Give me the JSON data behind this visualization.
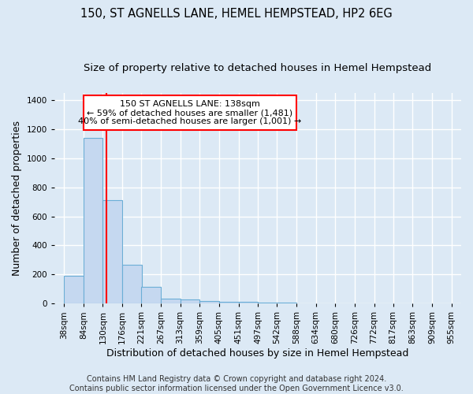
{
  "title1": "150, ST AGNELLS LANE, HEMEL HEMPSTEAD, HP2 6EG",
  "title2": "Size of property relative to detached houses in Hemel Hempstead",
  "xlabel": "Distribution of detached houses by size in Hemel Hempstead",
  "ylabel": "Number of detached properties",
  "footer1": "Contains HM Land Registry data © Crown copyright and database right 2024.",
  "footer2": "Contains public sector information licensed under the Open Government Licence v3.0.",
  "bar_left_edges": [
    38,
    84,
    130,
    176,
    221,
    267,
    313,
    359,
    405,
    451,
    497,
    542
  ],
  "bar_heights": [
    190,
    1140,
    710,
    265,
    115,
    35,
    28,
    20,
    15,
    13,
    8,
    8
  ],
  "bin_width": 46,
  "bar_color": "#c5d8f0",
  "bar_edge_color": "#6baed6",
  "x_tick_labels": [
    "38sqm",
    "84sqm",
    "130sqm",
    "176sqm",
    "221sqm",
    "267sqm",
    "313sqm",
    "359sqm",
    "405sqm",
    "451sqm",
    "497sqm",
    "542sqm",
    "588sqm",
    "634sqm",
    "680sqm",
    "726sqm",
    "772sqm",
    "817sqm",
    "863sqm",
    "909sqm",
    "955sqm"
  ],
  "x_tick_positions": [
    38,
    84,
    130,
    176,
    221,
    267,
    313,
    359,
    405,
    451,
    497,
    542,
    588,
    634,
    680,
    726,
    772,
    817,
    863,
    909,
    955
  ],
  "ylim": [
    0,
    1450
  ],
  "xlim": [
    15,
    978
  ],
  "red_line_x": 138,
  "annotation_line1": "150 ST AGNELLS LANE: 138sqm",
  "annotation_line2": "← 59% of detached houses are smaller (1,481)",
  "annotation_line3": "40% of semi-detached houses are larger (1,001) →",
  "ann_data_x1": 84,
  "ann_data_x2": 588,
  "ann_data_y1": 1195,
  "ann_data_y2": 1430,
  "background_color": "#dce9f5",
  "grid_color": "#ffffff",
  "title1_fontsize": 10.5,
  "title2_fontsize": 9.5,
  "axis_label_fontsize": 9,
  "tick_fontsize": 7.5,
  "footer_fontsize": 7
}
